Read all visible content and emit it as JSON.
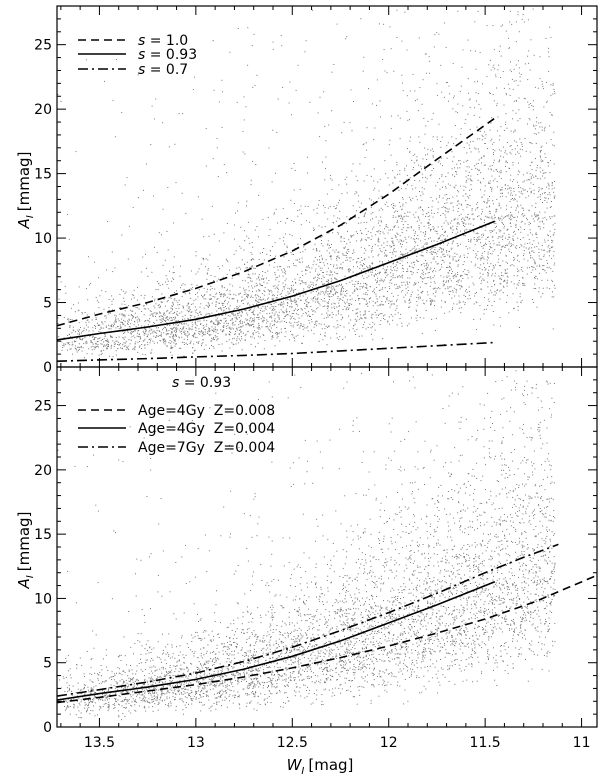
{
  "chart_data": [
    {
      "type": "scatter",
      "panel": "top",
      "x_reversed": true,
      "xlim": [
        13.72,
        10.92
      ],
      "ylim": [
        0,
        28
      ],
      "ylabel_base": "A",
      "ylabel_sub": "I",
      "ylabel_unit": "[mmag]",
      "y_ticks": [
        0,
        5,
        10,
        15,
        20,
        25
      ],
      "grid": false,
      "legend_position": "top-left",
      "legend_title": "",
      "scatter_description_color": "#777777",
      "series": [
        {
          "name": "s = 1.0",
          "legend_var": "s",
          "legend_value": "= 1.0",
          "style": "dashed",
          "x": [
            13.72,
            13.5,
            13.25,
            13.0,
            12.75,
            12.5,
            12.25,
            12.0,
            11.75,
            11.45
          ],
          "y": [
            3.2,
            4.1,
            5.0,
            6.1,
            7.4,
            9.0,
            11.0,
            13.4,
            16.1,
            19.3
          ]
        },
        {
          "name": "s = 0.93",
          "legend_var": "s",
          "legend_value": "= 0.93",
          "style": "solid",
          "x": [
            13.72,
            13.5,
            13.25,
            13.0,
            12.75,
            12.5,
            12.25,
            12.0,
            11.75,
            11.45
          ],
          "y": [
            2.1,
            2.6,
            3.1,
            3.7,
            4.5,
            5.5,
            6.7,
            8.1,
            9.5,
            11.3
          ]
        },
        {
          "name": "s = 0.7",
          "legend_var": "s",
          "legend_value": "= 0.7",
          "style": "dashdot",
          "x": [
            13.72,
            13.5,
            13.25,
            13.0,
            12.75,
            12.5,
            12.25,
            12.0,
            11.75,
            11.45
          ],
          "y": [
            0.45,
            0.55,
            0.65,
            0.78,
            0.9,
            1.05,
            1.25,
            1.45,
            1.65,
            1.9
          ]
        }
      ]
    },
    {
      "type": "scatter",
      "panel": "bottom",
      "x_reversed": true,
      "xlim": [
        13.72,
        10.92
      ],
      "ylim": [
        0,
        28
      ],
      "xlabel_base": "W",
      "xlabel_sub": "I",
      "xlabel_unit": "[mag]",
      "ylabel_base": "A",
      "ylabel_sub": "I",
      "ylabel_unit": "[mmag]",
      "x_ticks": [
        {
          "value": 13.5,
          "label": "13.5"
        },
        {
          "value": 13.0,
          "label": "13"
        },
        {
          "value": 12.5,
          "label": "12.5"
        },
        {
          "value": 12.0,
          "label": "12"
        },
        {
          "value": 11.5,
          "label": "11.5"
        },
        {
          "value": 11.0,
          "label": "11"
        }
      ],
      "y_ticks": [
        0,
        5,
        10,
        15,
        20,
        25
      ],
      "grid": false,
      "legend_position": "top-left",
      "legend_title_var": "s",
      "legend_title_value": "= 0.93",
      "series": [
        {
          "name": "Age=4Gy  Z=0.008",
          "style": "dashed",
          "x": [
            13.72,
            13.5,
            13.25,
            13.0,
            12.75,
            12.5,
            12.25,
            12.0,
            11.75,
            11.5,
            11.25,
            10.92
          ],
          "y": [
            1.9,
            2.3,
            2.8,
            3.3,
            3.9,
            4.6,
            5.4,
            6.3,
            7.3,
            8.4,
            9.7,
            11.8
          ]
        },
        {
          "name": "Age=4Gy  Z=0.004",
          "style": "solid",
          "x": [
            13.72,
            13.5,
            13.25,
            13.0,
            12.75,
            12.5,
            12.25,
            12.0,
            11.75,
            11.45
          ],
          "y": [
            2.1,
            2.6,
            3.1,
            3.7,
            4.5,
            5.5,
            6.7,
            8.1,
            9.5,
            11.3
          ]
        },
        {
          "name": "Age=7Gy  Z=0.004",
          "style": "dashdot",
          "x": [
            13.72,
            13.5,
            13.25,
            13.0,
            12.75,
            12.5,
            12.25,
            12.0,
            11.75,
            11.5,
            11.3,
            11.12
          ],
          "y": [
            2.4,
            2.9,
            3.5,
            4.2,
            5.1,
            6.2,
            7.5,
            8.9,
            10.4,
            12.0,
            13.2,
            14.2
          ]
        }
      ]
    }
  ]
}
